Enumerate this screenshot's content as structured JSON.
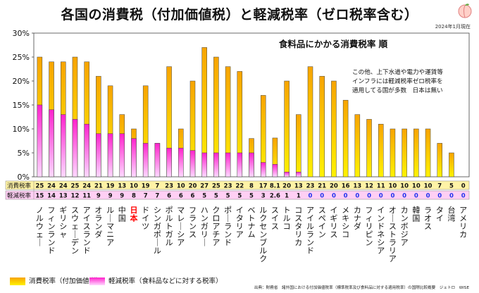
{
  "header": {
    "title": "各国の消費税（付加価値税）と軽減税率（ゼロ税率含む）",
    "date": "2024年1月現在"
  },
  "subtitle": "食料品にかかる消費税率 順",
  "note": [
    "この他、上下水道や電力や運賃等",
    "インフラには軽減税率ゼロ税率を",
    "適用してる国が多数　日本は無い"
  ],
  "legend": {
    "standard": "消費税率（付加価値税）",
    "reduced": "軽減税率（食料品などに対する税率）"
  },
  "source": "出典：財務省　諸外国における付加価値税率（標準税率及び食料品に対する適用税率）の国際比較概要　ジェトロ　WISE",
  "colors": {
    "standard_top": "#f7a400",
    "standard_bottom": "#fff200",
    "reduced_top": "#ff22cc",
    "reduced_bottom": "#ffd8ff",
    "japan_label": "#ff0000",
    "row1_bg": "#fff3a6",
    "row2_bg": "#ffcff4",
    "zero_text": "#2233ee"
  },
  "chart_data": {
    "type": "bar",
    "title": "食料品にかかる消費税率 順",
    "ylim": [
      0,
      30
    ],
    "yticks": [
      "0%",
      "5%",
      "10%",
      "15%",
      "20%",
      "25%",
      "30%"
    ],
    "table_row_labels": [
      "消費税率",
      "軽減税率"
    ],
    "categories": [
      "ノルウェー",
      "フィンランド",
      "ギリシャ",
      "スウェーデン",
      "アイスランド",
      "オランダ",
      "ルーマニア",
      "中国",
      "日本",
      "ドイツ",
      "シンガポール",
      "ポルトガル",
      "マレーシア",
      "フランス",
      "ハンガリー",
      "クロアチア",
      "ポーランド",
      "イタリア",
      "ベトナム",
      "ルクセンブルク",
      "スイス",
      "トルコ",
      "コスタリカ",
      "アイルランド",
      "スペイン",
      "イギリス",
      "メキシコ",
      "カナダ",
      "フィリピン",
      "インドネシア",
      "オーストラリア",
      "カンボジア",
      "韓国",
      "ラオス",
      "タイ",
      "台湾",
      "アメリカ"
    ],
    "series": [
      {
        "name": "消費税率（付加価値税）",
        "values": [
          25,
          24,
          24,
          25,
          24,
          21,
          19,
          13,
          10,
          19,
          7,
          23,
          10,
          20,
          27,
          25,
          23,
          22,
          8,
          17,
          8.1,
          20,
          13,
          23,
          21,
          20,
          16,
          13,
          12,
          11,
          10,
          10,
          10,
          10,
          7,
          5,
          0
        ]
      },
      {
        "name": "軽減税率（食料品などに対する税率）",
        "values": [
          15,
          14,
          13,
          12,
          11,
          9,
          9,
          9,
          8,
          7,
          7,
          6,
          6,
          5.5,
          5,
          5,
          5,
          5,
          5,
          3,
          2.6,
          1,
          1,
          0,
          0,
          0,
          0,
          0,
          0,
          0,
          0,
          0,
          0,
          0,
          0,
          0,
          0
        ]
      }
    ],
    "standard_labels": [
      "25",
      "24",
      "24",
      "25",
      "24",
      "21",
      "19",
      "13",
      "10",
      "19",
      "7",
      "23",
      "10",
      "20",
      "27",
      "25",
      "23",
      "22",
      "8",
      "17",
      "8.1",
      "20",
      "13",
      "23",
      "21",
      "20",
      "16",
      "13",
      "12",
      "11",
      "10",
      "10",
      "10",
      "10",
      "7",
      "5",
      "0"
    ],
    "reduced_labels": [
      "15",
      "14",
      "13",
      "12",
      "11",
      "9",
      "9",
      "9",
      "8",
      "7",
      "7",
      "6",
      "6",
      "6",
      "5",
      "5",
      "5",
      "5",
      "5",
      "3",
      "2.6",
      "1",
      "1",
      "0",
      "0",
      "0",
      "0",
      "0",
      "0",
      "0",
      "0",
      "0",
      "0",
      "0",
      "0",
      "0",
      "0"
    ]
  }
}
